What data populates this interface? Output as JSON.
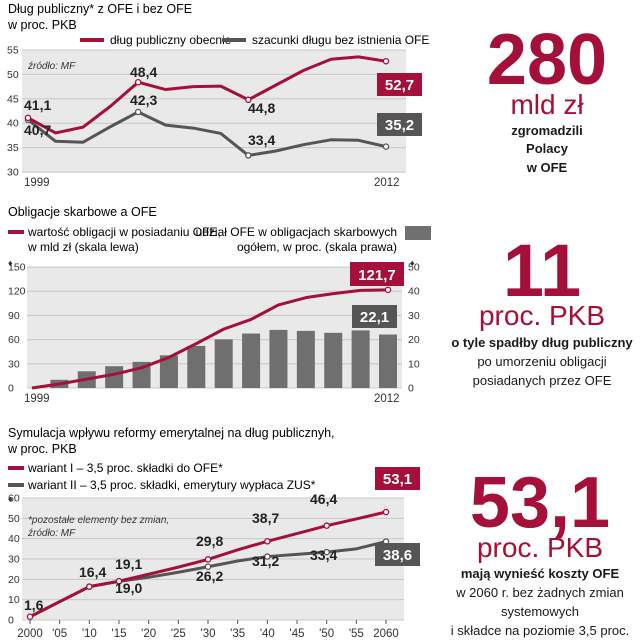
{
  "colors": {
    "red": "#a5103a",
    "gray": "#555555",
    "bar": "#6f6f6f",
    "panel": "#e9e9e9"
  },
  "chart_data": [
    {
      "type": "line",
      "title_lines": [
        "Dług publiczny* z OFE i bez OFE",
        "w proc. PKB"
      ],
      "note": "źródło: MF",
      "ylim": [
        30,
        55
      ],
      "yticks": [
        "30",
        "35",
        "40",
        "45",
        "50",
        "55"
      ],
      "xtick_labels": [
        "1999",
        "2012"
      ],
      "series": [
        {
          "name": "dług publiczny obecnie",
          "color": "#a5103a",
          "x": [
            1999,
            2000,
            2001,
            2002,
            2003,
            2004,
            2005,
            2006,
            2007,
            2008,
            2009,
            2010,
            2011,
            2012
          ],
          "values": [
            41.1,
            38.0,
            39.2,
            43.5,
            48.4,
            46.9,
            47.5,
            47.6,
            44.8,
            47.8,
            50.8,
            53.1,
            53.6,
            52.7
          ]
        },
        {
          "name": "szacunki długu bez istnienia OFE",
          "color": "#555555",
          "x": [
            1999,
            2000,
            2001,
            2002,
            2003,
            2004,
            2005,
            2006,
            2007,
            2008,
            2009,
            2010,
            2011,
            2012
          ],
          "values": [
            40.7,
            36.3,
            36.1,
            39.3,
            42.3,
            39.6,
            39.0,
            37.9,
            33.4,
            34.3,
            35.6,
            36.6,
            36.5,
            35.2
          ]
        }
      ],
      "point_labels": [
        "41,1",
        "40,7",
        "48,4",
        "42,3",
        "44,8",
        "33,4"
      ],
      "end_labels": [
        "52,7",
        "35,2"
      ]
    },
    {
      "type": "bar+line",
      "title": "Obligacje skarbowe a OFE",
      "line_legend_lines": [
        "wartość obligacji w posiadaniu OFE,",
        "w mld zł (skala lewa)"
      ],
      "bar_legend_lines": [
        "udział OFE w obligacjach skarbowych",
        "ogółem, w proc. (skala prawa)"
      ],
      "ylim_left": [
        0,
        150
      ],
      "ylim_right": [
        0,
        50
      ],
      "yticks_left": [
        "0",
        "30",
        "60",
        "90",
        "120",
        "150"
      ],
      "yticks_right": [
        "0",
        "10",
        "20",
        "30",
        "40",
        "50"
      ],
      "xtick_labels": [
        "1999",
        "2012"
      ],
      "line": {
        "x": [
          1999,
          2000,
          2001,
          2002,
          2003,
          2004,
          2005,
          2006,
          2007,
          2008,
          2009,
          2010,
          2011,
          2012
        ],
        "values": [
          0.0,
          5.0,
          11.0,
          17.0,
          25.0,
          38.0,
          55.0,
          73.0,
          85.0,
          103.0,
          112.0,
          117.0,
          121.0,
          121.7
        ]
      },
      "bars": {
        "x": [
          2000,
          2001,
          2002,
          2003,
          2004,
          2005,
          2006,
          2007,
          2008,
          2009,
          2010,
          2011,
          2012
        ],
        "values": [
          3.4,
          6.9,
          9.0,
          10.8,
          13.5,
          17.4,
          20.1,
          22.5,
          24.0,
          23.6,
          22.8,
          23.8,
          22.1
        ]
      },
      "end_labels": [
        "121,7",
        "22,1"
      ]
    },
    {
      "type": "line",
      "title_lines": [
        "Symulacja wpływu reformy emerytalnej na dług publicznyh,",
        "w proc. PKB"
      ],
      "note_lines": [
        "*pozostałe elementy bez zmian,",
        "źródło: MF"
      ],
      "ylim": [
        0,
        60
      ],
      "yticks": [
        "0",
        "10",
        "20",
        "30",
        "40",
        "50",
        "60"
      ],
      "xtick_labels": [
        "2000",
        "'05",
        "'10",
        "'15",
        "'20",
        "'25",
        "'30",
        "'35",
        "'40",
        "'45",
        "'50",
        "'55",
        "2060"
      ],
      "series": [
        {
          "name": "wariant I – 3,5 proc. składki do OFE*",
          "color": "#a5103a",
          "x": [
            2000,
            2005,
            2010,
            2015,
            2020,
            2025,
            2030,
            2035,
            2040,
            2045,
            2050,
            2055,
            2060
          ],
          "values": [
            1.6,
            9.0,
            16.4,
            19.1,
            22.5,
            26.0,
            29.8,
            34.5,
            38.7,
            42.5,
            46.4,
            49.7,
            53.1
          ]
        },
        {
          "name": "wariant II – 3,5 proc. składki, emerytury wypłaca ZUS*",
          "color": "#555555",
          "x": [
            2000,
            2005,
            2010,
            2015,
            2020,
            2025,
            2030,
            2035,
            2040,
            2045,
            2050,
            2055,
            2060
          ],
          "values": [
            1.6,
            9.0,
            16.4,
            19.0,
            21.0,
            23.5,
            26.2,
            29.0,
            31.2,
            32.3,
            33.4,
            35.0,
            38.6
          ]
        }
      ],
      "point_labels_upper": [
        "1,6",
        "16,4",
        "19,1",
        "29,8",
        "38,7",
        "46,4"
      ],
      "point_labels_lower": [
        "19,0",
        "26,2",
        "31,2",
        "33,4"
      ],
      "end_labels": [
        "53,1",
        "38,6"
      ]
    }
  ],
  "stats": [
    {
      "number": "280",
      "unit": "mld zł",
      "desc_lines": [
        "zgromadzili",
        "Polacy",
        "w OFE"
      ]
    },
    {
      "number": "11",
      "unit": "proc. PKB",
      "desc_lines": [
        "o tyle spadłby dług publiczny",
        "po umorzeniu obligacji",
        "posiadanych przez OFE"
      ]
    },
    {
      "number": "53,1",
      "unit": "proc. PKB",
      "desc_lines": [
        "mają wynieść koszty OFE",
        "w 2060 r. bez żadnych zmian",
        "systemowych",
        "i składce na poziomie 3,5 proc."
      ]
    }
  ]
}
